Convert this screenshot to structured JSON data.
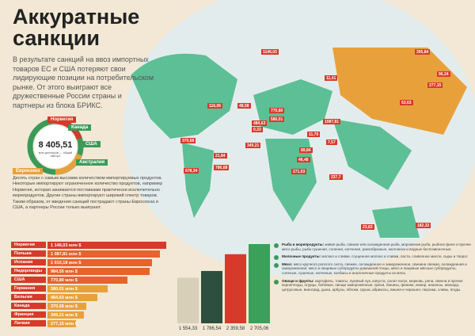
{
  "header": {
    "title": "Аккуратные санкции"
  },
  "intro": "В результате санкций на ввоз импортных товаров ЕС и США потеряют свои лидирующие позиции на потребительском рынке. От этого выиграют все дружественные России страны и партнеры из блока БРИКС.",
  "donut": {
    "total": "8 405,51",
    "unit": "млн долларов — общий импорт",
    "labels": [
      "Норвегия",
      "Канада",
      "США",
      "Австралия",
      "Евросоюз"
    ]
  },
  "description": "Десять стран с самым высоким количеством импортируемых продуктов. Некоторые импортируют ограниченное количество продуктов, например Норвегия, которая занимается поставками практически исключительно морепродуктов. Другие страны импортируют широкий спектр товаров. Таким образом, от введения санкций пострадают страны Евросоюза и США, а партнеры России только выиграют.",
  "top10": [
    {
      "country": "Норвегия",
      "value": 1146.03,
      "label": "1 146,03 млн $"
    },
    {
      "country": "Польша",
      "value": 1087.81,
      "label": "1 087,81 млн $"
    },
    {
      "country": "Испания",
      "value": 1010.18,
      "label": "1 010,18 млн $"
    },
    {
      "country": "Нидерланды",
      "value": 984.55,
      "label": "984,55 млн $"
    },
    {
      "country": "США",
      "value": 770.8,
      "label": "770,80 млн $"
    },
    {
      "country": "Германия",
      "value": 580.01,
      "label": "580,01 млн $"
    },
    {
      "country": "Бельгия",
      "value": 484.63,
      "label": "484,63 млн $"
    },
    {
      "country": "Канада",
      "value": 370.68,
      "label": "370,68 млн $"
    },
    {
      "country": "Франция",
      "value": 349.21,
      "label": "349,21 млн $"
    },
    {
      "country": "Латвия",
      "value": 277.15,
      "label": "277,15 млн $"
    }
  ],
  "map_labels": [
    "1146,03",
    "355,84",
    "96,24",
    "11,41",
    "277,15",
    "53,63",
    "116,06",
    "48,58",
    "770,80",
    "484,63",
    "580,01",
    "0,33",
    "1087,81",
    "11,76",
    "349,21",
    "7,57",
    "370,68",
    "89,84",
    "46,48",
    "271,03",
    "678,34",
    "21,84",
    "786,68",
    "237,7",
    "23,83",
    "182,32"
  ],
  "categories": [
    {
      "title": "Рыба и морепродукты:",
      "text": "живая рыба, свежая или охлажденная рыба, мороженая рыба, рыбное филе и прочее мясо рыбы, рыба сушеная, соленая, копченая, ракообразные, моллюски и водные беспозвоночные."
    },
    {
      "title": "Молочные продукты:",
      "text": "молоко и сливки, сгущенное молоко и сливки, паста, сливочное масло, сыры и творог."
    },
    {
      "title": "Мясо:",
      "text": "мясо крупного рогатого скота, свежее, охлажденное и замороженное, свинина свежая, охлажденная и замороженная, мясо и пищевые субпродукты домашней птицы, мясо и пищевые мясные субпродукты, соленые, сушеные, копченые, колбасы и аналогичные продукты из мяса."
    },
    {
      "title": "Овощи и фрукты:",
      "text": "картофель, томаты, луковый лук, капуста, салат-латук, морковь, репа, свекла и прочие корнеплоды, огурцы, бобовые, овощи замороженные, орехи, бананы, финики, инжир, ананасы, авокадо, цитрусовые, виноград, дыни, арбузы, яблоки, груши, абрикосы, вишня и черешня, персики, сливы, ягоды."
    }
  ],
  "columns": [
    {
      "value": 1554.33,
      "label": "1 554,33"
    },
    {
      "value": 1786.54,
      "label": "1 786,54"
    },
    {
      "value": 2359.58,
      "label": "2 359,58"
    },
    {
      "value": 2705.06,
      "label": "2 705,06"
    }
  ]
}
